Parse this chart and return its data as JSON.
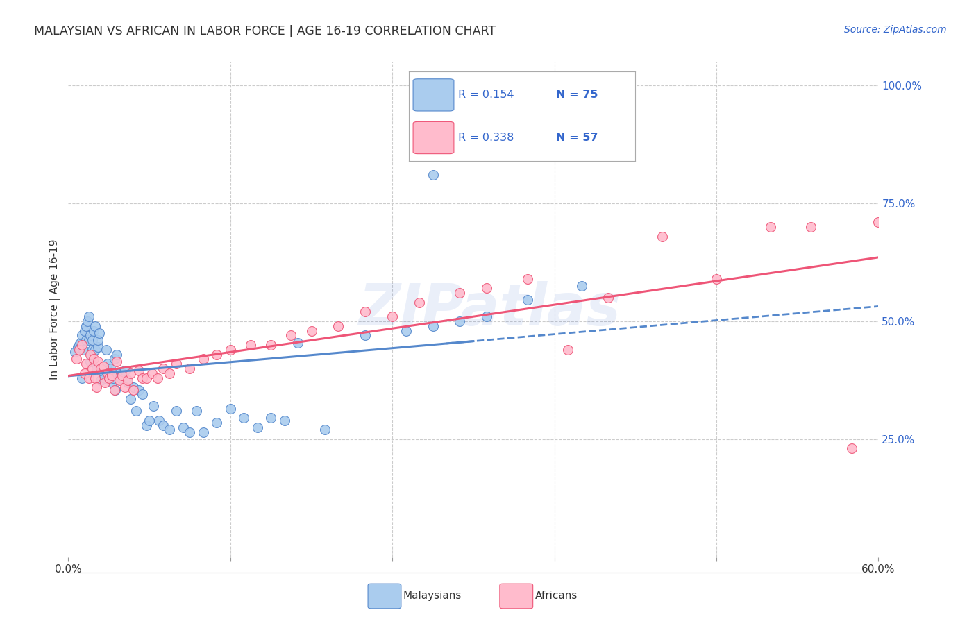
{
  "title": "MALAYSIAN VS AFRICAN IN LABOR FORCE | AGE 16-19 CORRELATION CHART",
  "source": "Source: ZipAtlas.com",
  "ylabel": "In Labor Force | Age 16-19",
  "watermark": "ZIPatlas",
  "x_min": 0.0,
  "x_max": 0.6,
  "y_min": 0.0,
  "y_max": 1.05,
  "R_malaysian": 0.154,
  "N_malaysian": 75,
  "R_african": 0.338,
  "N_african": 57,
  "color_malaysian": "#AACCEE",
  "color_african": "#FFBBCC",
  "line_color_malaysian": "#5588CC",
  "line_color_african": "#EE5577",
  "legend_text_color": "#3366CC",
  "title_color": "#333333",
  "grid_color": "#CCCCCC",
  "background_color": "#FFFFFF",
  "malaysian_x": [
    0.005,
    0.007,
    0.008,
    0.009,
    0.01,
    0.01,
    0.011,
    0.012,
    0.013,
    0.013,
    0.014,
    0.015,
    0.015,
    0.016,
    0.016,
    0.017,
    0.018,
    0.018,
    0.019,
    0.02,
    0.02,
    0.021,
    0.022,
    0.022,
    0.023,
    0.024,
    0.025,
    0.026,
    0.027,
    0.028,
    0.029,
    0.03,
    0.031,
    0.032,
    0.033,
    0.034,
    0.035,
    0.036,
    0.038,
    0.039,
    0.04,
    0.042,
    0.044,
    0.046,
    0.048,
    0.05,
    0.052,
    0.055,
    0.058,
    0.06,
    0.063,
    0.067,
    0.07,
    0.075,
    0.08,
    0.085,
    0.09,
    0.095,
    0.1,
    0.11,
    0.12,
    0.13,
    0.14,
    0.15,
    0.16,
    0.17,
    0.19,
    0.22,
    0.25,
    0.27,
    0.29,
    0.31,
    0.34,
    0.38,
    0.27
  ],
  "malaysian_y": [
    0.435,
    0.445,
    0.45,
    0.455,
    0.38,
    0.47,
    0.44,
    0.48,
    0.46,
    0.49,
    0.5,
    0.46,
    0.51,
    0.47,
    0.415,
    0.43,
    0.46,
    0.44,
    0.48,
    0.44,
    0.49,
    0.4,
    0.445,
    0.46,
    0.475,
    0.375,
    0.395,
    0.4,
    0.38,
    0.44,
    0.41,
    0.39,
    0.4,
    0.37,
    0.38,
    0.42,
    0.355,
    0.43,
    0.39,
    0.38,
    0.39,
    0.395,
    0.37,
    0.335,
    0.36,
    0.31,
    0.355,
    0.345,
    0.28,
    0.29,
    0.32,
    0.29,
    0.28,
    0.27,
    0.31,
    0.275,
    0.265,
    0.31,
    0.265,
    0.285,
    0.315,
    0.295,
    0.275,
    0.295,
    0.29,
    0.455,
    0.27,
    0.47,
    0.48,
    0.49,
    0.5,
    0.51,
    0.545,
    0.575,
    0.81
  ],
  "african_x": [
    0.006,
    0.008,
    0.01,
    0.012,
    0.013,
    0.015,
    0.016,
    0.018,
    0.019,
    0.02,
    0.021,
    0.022,
    0.024,
    0.026,
    0.027,
    0.029,
    0.03,
    0.032,
    0.034,
    0.036,
    0.038,
    0.04,
    0.042,
    0.044,
    0.046,
    0.048,
    0.052,
    0.055,
    0.058,
    0.062,
    0.066,
    0.07,
    0.075,
    0.08,
    0.09,
    0.1,
    0.11,
    0.12,
    0.135,
    0.15,
    0.165,
    0.18,
    0.2,
    0.22,
    0.24,
    0.26,
    0.29,
    0.31,
    0.34,
    0.37,
    0.4,
    0.44,
    0.48,
    0.52,
    0.55,
    0.58,
    0.6
  ],
  "african_y": [
    0.42,
    0.44,
    0.45,
    0.39,
    0.41,
    0.38,
    0.43,
    0.4,
    0.42,
    0.38,
    0.36,
    0.415,
    0.4,
    0.405,
    0.37,
    0.39,
    0.38,
    0.385,
    0.355,
    0.415,
    0.375,
    0.385,
    0.36,
    0.375,
    0.39,
    0.355,
    0.395,
    0.38,
    0.38,
    0.39,
    0.38,
    0.4,
    0.39,
    0.41,
    0.4,
    0.42,
    0.43,
    0.44,
    0.45,
    0.45,
    0.47,
    0.48,
    0.49,
    0.52,
    0.51,
    0.54,
    0.56,
    0.57,
    0.59,
    0.44,
    0.55,
    0.68,
    0.59,
    0.7,
    0.7,
    0.23,
    0.71
  ]
}
